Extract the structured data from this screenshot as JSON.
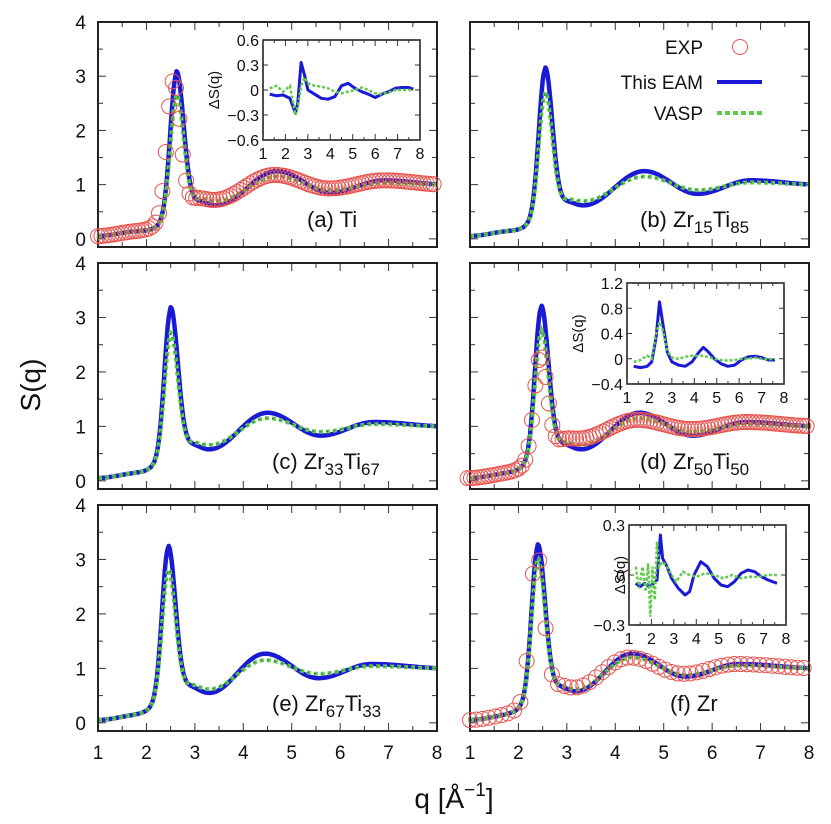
{
  "chart_data": {
    "type": "line",
    "title": "",
    "xlabel": "q [Å⁻¹]",
    "xlabel_parts": {
      "main": "q [Å",
      "sup": "−1",
      "close": "]"
    },
    "ylabel": "S(q)",
    "xlim": [
      1,
      8
    ],
    "ylim": [
      -0.15,
      4
    ],
    "x_ticks": [
      "1",
      "2",
      "3",
      "4",
      "5",
      "6",
      "7",
      "8"
    ],
    "y_ticks": [
      "0",
      "1",
      "2",
      "3",
      "4"
    ],
    "grid": false,
    "legend": {
      "placement": "top-right of panel (b)",
      "entries": [
        {
          "name": "EXP",
          "marker": "open-circle",
          "color": "#e8534f"
        },
        {
          "name": "This EAM",
          "marker": "solid-line",
          "color": "#1a1ad6"
        },
        {
          "name": "VASP",
          "marker": "dashed-line",
          "color": "#5ecb4a"
        }
      ]
    },
    "colors": {
      "EXP": "#e8534f",
      "EAM": "#1a1ad6",
      "VASP": "#5ecb4a",
      "frame": "#222222"
    },
    "panels": [
      {
        "id": "a",
        "label": "(a) Ti",
        "label_main": "(a) Ti",
        "sub1": "",
        "mid": "",
        "sub2": "",
        "has_exp": true,
        "peaks": {
          "EAM": {
            "x1": 2.62,
            "h1": 3.03,
            "min1x": 3.45,
            "min1": 0.62,
            "x2": 4.7,
            "h2": 1.25,
            "min2": 0.85,
            "x3": 6.9,
            "h3": 1.08
          },
          "VASP": {
            "x1": 2.62,
            "h1": 2.6,
            "min1x": 3.45,
            "min1": 0.7,
            "x2": 4.7,
            "h2": 1.15,
            "min2": 0.9,
            "x3": 6.9,
            "h3": 1.03
          },
          "EXP": {
            "x1": 2.55,
            "h1": 2.9,
            "min1x": 3.4,
            "min1": 0.72,
            "x2": 4.65,
            "h2": 1.18,
            "min2": 0.93,
            "x3": 6.9,
            "h3": 1.08
          }
        },
        "inset": {
          "ylabel": "ΔS(q)",
          "ylim": [
            -0.6,
            0.6
          ],
          "y_ticks": [
            "0.6",
            "0.3",
            "0",
            "−0.3",
            "−0.6"
          ],
          "y_tick_values": [
            0.6,
            0.3,
            0,
            -0.3,
            -0.6
          ],
          "x_ticks": [
            "1",
            "2",
            "3",
            "4",
            "5",
            "6",
            "7",
            "8"
          ],
          "EAM": {
            "x": [
              1.3,
              1.6,
              1.9,
              2.2,
              2.45,
              2.55,
              2.7,
              2.85,
              3.0,
              3.3,
              3.6,
              3.9,
              4.2,
              4.5,
              4.8,
              5.1,
              5.4,
              5.7,
              6.0,
              6.3,
              6.6,
              6.9,
              7.2,
              7.5,
              7.7
            ],
            "y": [
              -0.05,
              -0.07,
              -0.06,
              -0.1,
              -0.28,
              -0.15,
              0.33,
              0.18,
              0.0,
              -0.05,
              -0.1,
              -0.11,
              -0.08,
              0.05,
              0.08,
              0.02,
              -0.02,
              -0.05,
              -0.09,
              -0.05,
              -0.02,
              0.02,
              0.03,
              0.03,
              0.01
            ]
          },
          "VASP": {
            "x": [
              1.3,
              1.6,
              1.9,
              2.2,
              2.45,
              2.55,
              2.7,
              2.85,
              3.0,
              3.3,
              3.6,
              3.9,
              4.2,
              4.5,
              4.8,
              5.1,
              5.4,
              5.7,
              6.0,
              6.3,
              6.6,
              6.9,
              7.2,
              7.5,
              7.7
            ],
            "y": [
              0.02,
              0.05,
              -0.02,
              0.05,
              -0.3,
              -0.2,
              0.05,
              0.15,
              0.08,
              0.05,
              0.04,
              0.02,
              -0.02,
              -0.04,
              -0.02,
              0.0,
              0.03,
              0.0,
              -0.04,
              -0.05,
              -0.03,
              0.0,
              0.0,
              0.0,
              0.0
            ]
          }
        }
      },
      {
        "id": "b",
        "label": "(b) Zr15Ti85",
        "label_main": "(b) Zr",
        "sub1": "15",
        "mid": "Ti",
        "sub2": "85",
        "has_exp": false,
        "peaks": {
          "EAM": {
            "x1": 2.55,
            "h1": 3.1,
            "min1x": 3.35,
            "min1": 0.62,
            "x2": 4.6,
            "h2": 1.25,
            "min2": 0.83,
            "x3": 6.8,
            "h3": 1.08
          },
          "VASP": {
            "x1": 2.55,
            "h1": 2.65,
            "min1x": 3.35,
            "min1": 0.7,
            "x2": 4.6,
            "h2": 1.15,
            "min2": 0.9,
            "x3": 6.8,
            "h3": 1.04
          }
        }
      },
      {
        "id": "c",
        "label": "(c) Zr33Ti67",
        "label_main": "(c) Zr",
        "sub1": "33",
        "mid": "Ti",
        "sub2": "67",
        "has_exp": false,
        "peaks": {
          "EAM": {
            "x1": 2.5,
            "h1": 3.12,
            "min1x": 3.3,
            "min1": 0.58,
            "x2": 4.5,
            "h2": 1.25,
            "min2": 0.83,
            "x3": 6.7,
            "h3": 1.08
          },
          "VASP": {
            "x1": 2.5,
            "h1": 2.65,
            "min1x": 3.3,
            "min1": 0.66,
            "x2": 4.5,
            "h2": 1.15,
            "min2": 0.9,
            "x3": 6.7,
            "h3": 1.04
          }
        }
      },
      {
        "id": "d",
        "label": "(d) Zr50Ti50",
        "label_main": "(d) Zr",
        "sub1": "50",
        "mid": "Ti",
        "sub2": "50",
        "has_exp": true,
        "peaks": {
          "EAM": {
            "x1": 2.47,
            "h1": 3.15,
            "min1x": 3.3,
            "min1": 0.58,
            "x2": 4.5,
            "h2": 1.25,
            "min2": 0.83,
            "x3": 6.7,
            "h3": 1.08
          },
          "VASP": {
            "x1": 2.47,
            "h1": 2.7,
            "min1x": 3.3,
            "min1": 0.66,
            "x2": 4.5,
            "h2": 1.15,
            "min2": 0.9,
            "x3": 6.7,
            "h3": 1.04
          },
          "EXP": {
            "x1": 2.45,
            "h1": 2.25,
            "min1x": 3.25,
            "min1": 0.78,
            "x2": 4.45,
            "h2": 1.12,
            "min2": 0.95,
            "x3": 6.7,
            "h3": 1.08
          }
        },
        "inset": {
          "ylabel": "ΔS(q)",
          "ylim": [
            -0.4,
            1.2
          ],
          "y_ticks": [
            "1.2",
            "0.8",
            "0.4",
            "0",
            "−0.4"
          ],
          "y_tick_values": [
            1.2,
            0.8,
            0.4,
            0,
            -0.4
          ],
          "x_ticks": [
            "1",
            "2",
            "3",
            "4",
            "5",
            "6",
            "7",
            "8"
          ],
          "EAM": {
            "x": [
              1.3,
              1.6,
              1.9,
              2.1,
              2.3,
              2.45,
              2.6,
              2.8,
              3.0,
              3.3,
              3.6,
              3.9,
              4.2,
              4.4,
              4.6,
              4.9,
              5.2,
              5.5,
              5.8,
              6.1,
              6.4,
              6.7,
              7.0,
              7.3,
              7.6
            ],
            "y": [
              -0.12,
              -0.14,
              -0.12,
              -0.05,
              0.35,
              0.9,
              0.55,
              0.1,
              -0.05,
              -0.1,
              -0.12,
              -0.05,
              0.1,
              0.18,
              0.12,
              0.0,
              -0.08,
              -0.12,
              -0.1,
              -0.02,
              0.03,
              0.04,
              0.02,
              -0.02,
              -0.02
            ]
          },
          "VASP": {
            "x": [
              1.3,
              1.6,
              1.9,
              2.1,
              2.3,
              2.45,
              2.6,
              2.8,
              3.0,
              3.3,
              3.6,
              3.9,
              4.2,
              4.4,
              4.6,
              4.9,
              5.2,
              5.5,
              5.8,
              6.1,
              6.4,
              6.7,
              7.0,
              7.3,
              7.6
            ],
            "y": [
              -0.05,
              -0.02,
              0.05,
              0.0,
              0.4,
              0.58,
              0.45,
              0.12,
              0.02,
              0.0,
              0.03,
              0.05,
              0.04,
              0.05,
              0.03,
              0.0,
              -0.02,
              -0.03,
              -0.02,
              0.0,
              0.0,
              0.02,
              0.0,
              -0.01,
              0.0
            ]
          }
        }
      },
      {
        "id": "e",
        "label": "(e) Zr67Ti33",
        "label_main": "(e) Zr",
        "sub1": "67",
        "mid": "Ti",
        "sub2": "33",
        "has_exp": false,
        "peaks": {
          "EAM": {
            "x1": 2.45,
            "h1": 3.18,
            "min1x": 3.3,
            "min1": 0.55,
            "x2": 4.45,
            "h2": 1.27,
            "min2": 0.82,
            "x3": 6.65,
            "h3": 1.08
          },
          "VASP": {
            "x1": 2.45,
            "h1": 2.75,
            "min1x": 3.3,
            "min1": 0.62,
            "x2": 4.45,
            "h2": 1.15,
            "min2": 0.9,
            "x3": 6.65,
            "h3": 1.04
          }
        }
      },
      {
        "id": "f",
        "label": "(f) Zr",
        "label_main": "(f) Zr",
        "sub1": "",
        "mid": "",
        "sub2": "",
        "has_exp": true,
        "peaks": {
          "EAM": {
            "x1": 2.4,
            "h1": 3.2,
            "min1x": 3.2,
            "min1": 0.58,
            "x2": 4.35,
            "h2": 1.27,
            "min2": 0.85,
            "x3": 6.55,
            "h3": 1.08
          },
          "VASP": {
            "x1": 2.4,
            "h1": 2.95,
            "min1x": 3.2,
            "min1": 0.62,
            "x2": 4.35,
            "h2": 1.2,
            "min2": 0.88,
            "x3": 6.55,
            "h3": 1.05
          },
          "EXP": {
            "x1": 2.37,
            "h1": 3.1,
            "min1x": 3.15,
            "min1": 0.65,
            "x2": 4.3,
            "h2": 1.2,
            "min2": 0.9,
            "x3": 6.5,
            "h3": 1.08
          }
        },
        "inset": {
          "ylabel": "ΔS(q)",
          "ylim": [
            -0.3,
            0.3
          ],
          "y_ticks": [
            "0.3",
            "0",
            "−0.3"
          ],
          "y_tick_values": [
            0.3,
            0,
            -0.3
          ],
          "x_ticks": [
            "1",
            "2",
            "3",
            "4",
            "5",
            "6",
            "7",
            "8"
          ],
          "EAM": {
            "x": [
              1.3,
              1.5,
              1.7,
              1.9,
              2.1,
              2.25,
              2.4,
              2.5,
              2.7,
              2.9,
              3.2,
              3.5,
              3.7,
              3.9,
              4.2,
              4.5,
              4.8,
              5.1,
              5.4,
              5.7,
              6.0,
              6.3,
              6.6,
              6.9,
              7.2,
              7.6
            ],
            "y": [
              -0.05,
              -0.07,
              -0.05,
              -0.07,
              -0.05,
              -0.03,
              0.24,
              0.1,
              0.05,
              -0.02,
              -0.08,
              -0.12,
              -0.1,
              0.0,
              0.08,
              0.05,
              -0.02,
              -0.06,
              -0.07,
              -0.04,
              0.01,
              0.03,
              0.02,
              -0.01,
              -0.03,
              -0.05
            ]
          },
          "VASP": {
            "x": [
              1.3,
              1.45,
              1.6,
              1.75,
              1.85,
              1.95,
              2.05,
              2.15,
              2.25,
              2.35,
              2.5,
              2.7,
              2.9,
              3.1,
              3.4,
              3.7,
              4.0,
              4.4,
              4.8,
              5.2,
              5.6,
              6.0,
              6.4,
              6.8,
              7.2,
              7.6
            ],
            "y": [
              0.05,
              -0.08,
              0.05,
              -0.1,
              0.07,
              -0.25,
              0.05,
              -0.15,
              0.2,
              0.05,
              0.08,
              0.05,
              0.0,
              -0.04,
              0.02,
              0.0,
              -0.01,
              0.01,
              0.0,
              -0.02,
              0.0,
              -0.02,
              -0.01,
              -0.01,
              0.0,
              0.0
            ]
          }
        }
      }
    ]
  }
}
